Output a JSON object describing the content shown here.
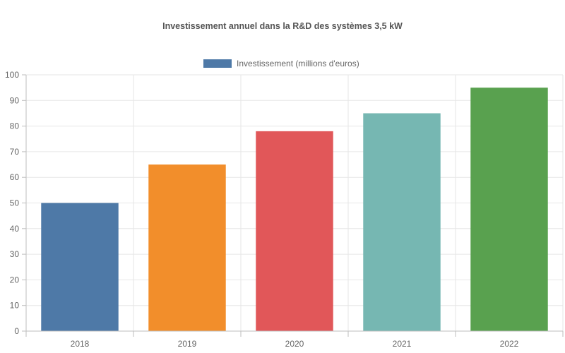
{
  "chart_data": {
    "type": "bar",
    "title": "Investissement annuel dans la R&D des systèmes 3,5 kW",
    "categories": [
      "2018",
      "2019",
      "2020",
      "2021",
      "2022"
    ],
    "series": [
      {
        "name": "Investissement (millions d'euros)",
        "values": [
          50,
          65,
          78,
          85,
          95
        ]
      }
    ],
    "bar_colors": [
      "#4e79a7",
      "#f28e2b",
      "#e15759",
      "#76b7b2",
      "#59a14f"
    ],
    "legend_color": "#4e79a7",
    "ylim": [
      0,
      100
    ],
    "yticks": [
      0,
      10,
      20,
      30,
      40,
      50,
      60,
      70,
      80,
      90,
      100
    ],
    "grid": true,
    "legend_position": "top-center"
  }
}
